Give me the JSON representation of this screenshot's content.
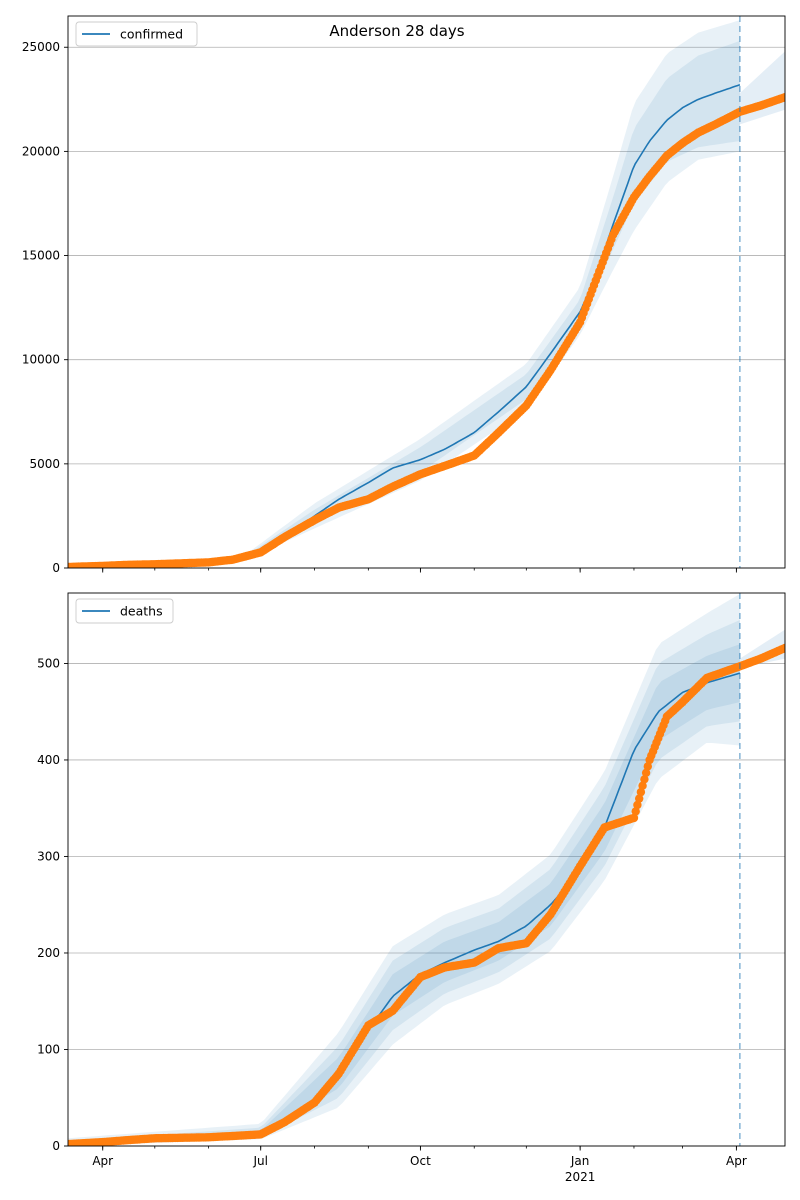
{
  "figure": {
    "title": "Anderson 28 days"
  },
  "colors": {
    "model": "#1f77b4",
    "observed": "#ff7f0e",
    "band": "#1f77b4",
    "grid": "#b0b0b0"
  },
  "chart_data": [
    {
      "type": "line",
      "name": "confirmed",
      "legend": "top-left",
      "grid": "horizontal",
      "xrange": [
        "2020-03-12",
        "2021-04-29"
      ],
      "ylim": [
        0,
        26500
      ],
      "yticks": [
        0,
        5000,
        10000,
        15000,
        20000,
        25000
      ],
      "xticks": [
        {
          "date": "2020-04-01",
          "label": "Apr",
          "sub": ""
        },
        {
          "date": "2020-07-01",
          "label": "Jul",
          "sub": ""
        },
        {
          "date": "2020-10-01",
          "label": "Oct",
          "sub": ""
        },
        {
          "date": "2021-01-01",
          "label": "Jan",
          "sub": "2021"
        },
        {
          "date": "2021-04-01",
          "label": "Apr",
          "sub": ""
        }
      ],
      "forecast_line_date": "2021-04-03",
      "model": {
        "x": [
          "2020-06-20",
          "2020-07-01",
          "2020-07-15",
          "2020-08-01",
          "2020-08-15",
          "2020-09-01",
          "2020-09-15",
          "2020-10-01",
          "2020-10-15",
          "2020-11-01",
          "2020-11-15",
          "2020-12-01",
          "2020-12-15",
          "2021-01-01",
          "2021-01-10",
          "2021-01-20",
          "2021-02-01",
          "2021-02-10",
          "2021-02-20",
          "2021-03-01",
          "2021-03-10",
          "2021-03-20",
          "2021-04-03"
        ],
        "y": [
          400,
          800,
          1500,
          2500,
          3300,
          4100,
          4800,
          5200,
          5700,
          6500,
          7500,
          8700,
          10300,
          12300,
          14000,
          16500,
          19300,
          20500,
          21500,
          22100,
          22500,
          22800,
          23200
        ]
      },
      "bands": [
        {
          "x": [
            "2020-06-20",
            "2020-08-01",
            "2020-10-01",
            "2020-12-01",
            "2021-01-01",
            "2021-01-20",
            "2021-02-01",
            "2021-02-20",
            "2021-03-10",
            "2021-04-03"
          ],
          "lower": [
            350,
            2200,
            4600,
            8100,
            11800,
            15300,
            17500,
            19500,
            20200,
            20500
          ],
          "upper": [
            450,
            2800,
            5800,
            9300,
            12900,
            17800,
            21100,
            23500,
            24600,
            25300
          ]
        },
        {
          "x": [
            "2020-06-20",
            "2020-08-01",
            "2020-10-01",
            "2020-12-01",
            "2021-01-01",
            "2021-01-20",
            "2021-02-01",
            "2021-02-20",
            "2021-03-10",
            "2021-04-03"
          ],
          "lower": [
            300,
            1900,
            4200,
            7600,
            11200,
            14300,
            16200,
            18500,
            19600,
            20000
          ],
          "upper": [
            500,
            3100,
            6200,
            9800,
            13500,
            18800,
            22300,
            24700,
            25700,
            26300
          ]
        }
      ],
      "post_forecast_band": {
        "x": [
          "2021-04-03",
          "2021-04-29"
        ],
        "lower": [
          21300,
          22000
        ],
        "upper": [
          22800,
          24800
        ]
      },
      "observed": {
        "x": [
          "2020-03-12",
          "2020-04-01",
          "2020-04-15",
          "2020-05-01",
          "2020-05-15",
          "2020-06-01",
          "2020-06-15",
          "2020-07-01",
          "2020-07-15",
          "2020-08-01",
          "2020-08-15",
          "2020-09-01",
          "2020-09-15",
          "2020-10-01",
          "2020-10-15",
          "2020-11-01",
          "2020-11-15",
          "2020-12-01",
          "2020-12-15",
          "2021-01-01",
          "2021-01-10",
          "2021-01-20",
          "2021-02-01",
          "2021-02-10",
          "2021-02-20",
          "2021-03-01",
          "2021-03-10",
          "2021-03-20",
          "2021-04-03",
          "2021-04-15",
          "2021-04-29"
        ],
        "y": [
          50,
          100,
          150,
          180,
          220,
          270,
          400,
          750,
          1500,
          2300,
          2900,
          3300,
          3900,
          4500,
          4900,
          5400,
          6500,
          7800,
          9500,
          11800,
          13800,
          16000,
          17800,
          18800,
          19800,
          20400,
          20900,
          21300,
          21900,
          22200,
          22600
        ]
      }
    },
    {
      "type": "line",
      "name": "deaths",
      "legend": "top-left",
      "grid": "horizontal",
      "xrange": [
        "2020-03-12",
        "2021-04-29"
      ],
      "ylim": [
        0,
        573
      ],
      "yticks": [
        0,
        100,
        200,
        300,
        400,
        500
      ],
      "xticks": [
        {
          "date": "2020-04-01",
          "label": "Apr",
          "sub": ""
        },
        {
          "date": "2020-07-01",
          "label": "Jul",
          "sub": ""
        },
        {
          "date": "2020-10-01",
          "label": "Oct",
          "sub": ""
        },
        {
          "date": "2021-01-01",
          "label": "Jan",
          "sub": "2021"
        },
        {
          "date": "2021-04-01",
          "label": "Apr",
          "sub": ""
        }
      ],
      "forecast_line_date": "2021-04-03",
      "model": {
        "x": [
          "2020-03-12",
          "2020-05-01",
          "2020-06-01",
          "2020-07-01",
          "2020-07-15",
          "2020-08-01",
          "2020-08-15",
          "2020-09-01",
          "2020-09-15",
          "2020-10-01",
          "2020-10-15",
          "2020-11-01",
          "2020-11-15",
          "2020-12-01",
          "2020-12-15",
          "2021-01-01",
          "2021-01-15",
          "2021-02-01",
          "2021-02-15",
          "2021-03-01",
          "2021-03-15",
          "2021-04-03"
        ],
        "y": [
          0,
          6,
          9,
          13,
          22,
          42,
          75,
          120,
          155,
          178,
          190,
          203,
          212,
          228,
          250,
          285,
          330,
          410,
          450,
          470,
          480,
          490
        ]
      },
      "bands": [
        {
          "x": [
            "2020-03-12",
            "2020-07-01",
            "2020-08-15",
            "2020-09-15",
            "2020-10-15",
            "2020-11-15",
            "2020-12-15",
            "2021-01-15",
            "2021-02-15",
            "2021-03-15",
            "2021-04-03"
          ],
          "lower": [
            0,
            11,
            60,
            135,
            170,
            192,
            228,
            305,
            420,
            452,
            460
          ],
          "upper": [
            3,
            16,
            92,
            178,
            212,
            232,
            272,
            355,
            480,
            508,
            520
          ]
        },
        {
          "x": [
            "2020-03-12",
            "2020-07-01",
            "2020-08-15",
            "2020-09-15",
            "2020-10-15",
            "2020-11-15",
            "2020-12-15",
            "2021-01-15",
            "2021-02-15",
            "2021-03-15",
            "2021-04-03"
          ],
          "lower": [
            0,
            9,
            50,
            120,
            158,
            180,
            215,
            290,
            400,
            435,
            440
          ],
          "upper": [
            5,
            19,
            104,
            192,
            226,
            246,
            287,
            372,
            500,
            530,
            545
          ]
        },
        {
          "x": [
            "2020-03-12",
            "2020-07-01",
            "2020-08-15",
            "2020-09-15",
            "2020-10-15",
            "2020-11-15",
            "2020-12-15",
            "2021-01-15",
            "2021-02-15",
            "2021-03-15",
            "2021-04-03"
          ],
          "lower": [
            0,
            7,
            40,
            105,
            146,
            168,
            202,
            275,
            380,
            418,
            415
          ],
          "upper": [
            8,
            23,
            118,
            207,
            240,
            260,
            302,
            388,
            520,
            552,
            572
          ]
        }
      ],
      "post_forecast_band": {
        "x": [
          "2021-04-03",
          "2021-04-29"
        ],
        "lower": [
          495,
          505
        ],
        "upper": [
          505,
          535
        ]
      },
      "observed": {
        "x": [
          "2020-03-12",
          "2020-04-01",
          "2020-04-15",
          "2020-05-01",
          "2020-06-01",
          "2020-07-01",
          "2020-07-15",
          "2020-08-01",
          "2020-08-15",
          "2020-09-01",
          "2020-09-15",
          "2020-10-01",
          "2020-10-15",
          "2020-11-01",
          "2020-11-15",
          "2020-12-01",
          "2020-12-15",
          "2021-01-01",
          "2021-01-15",
          "2021-02-01",
          "2021-02-10",
          "2021-02-20",
          "2021-03-01",
          "2021-03-15",
          "2021-04-03",
          "2021-04-15",
          "2021-04-29"
        ],
        "y": [
          2,
          4,
          6,
          8,
          9,
          12,
          25,
          45,
          75,
          125,
          140,
          175,
          185,
          190,
          205,
          210,
          240,
          290,
          330,
          340,
          400,
          445,
          460,
          485,
          497,
          505,
          516
        ]
      }
    }
  ]
}
